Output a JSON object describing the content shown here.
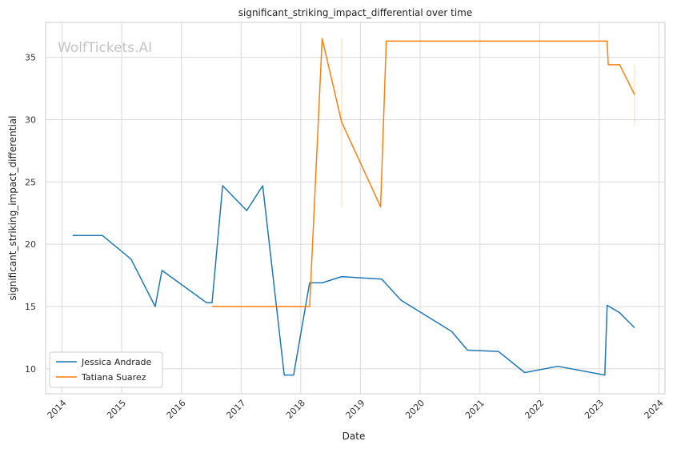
{
  "chart_data": {
    "type": "line",
    "title": "significant_striking_impact_differential over time",
    "xlabel": "Date",
    "ylabel": "significant_striking_impact_differential",
    "watermark": "WolfTickets.AI",
    "x_ticks": [
      "2014",
      "2015",
      "2016",
      "2017",
      "2018",
      "2019",
      "2020",
      "2021",
      "2022",
      "2023",
      "2024"
    ],
    "y_ticks": [
      10,
      15,
      20,
      25,
      30,
      35
    ],
    "xlim": [
      "2013-09-23",
      "2024-02-07"
    ],
    "ylim": [
      8.0,
      37.8
    ],
    "grid": true,
    "legend_position": "lower-left",
    "colors": {
      "Jessica Andrade": "#1f77b4",
      "Tatiana Suarez": "#ff7f0e"
    },
    "series": [
      {
        "name": "Jessica Andrade",
        "points": [
          [
            "2014-03-08",
            20.7
          ],
          [
            "2014-09-06",
            20.7
          ],
          [
            "2015-02-28",
            18.8
          ],
          [
            "2015-07-25",
            15.0
          ],
          [
            "2015-09-05",
            17.9
          ],
          [
            "2016-06-04",
            15.3
          ],
          [
            "2016-07-07",
            15.3
          ],
          [
            "2016-09-10",
            24.7
          ],
          [
            "2017-02-04",
            22.7
          ],
          [
            "2017-05-13",
            24.7
          ],
          [
            "2017-09-22",
            9.5
          ],
          [
            "2017-11-18",
            9.5
          ],
          [
            "2018-02-24",
            16.9
          ],
          [
            "2018-05-12",
            16.9
          ],
          [
            "2018-09-08",
            17.4
          ],
          [
            "2019-05-11",
            17.2
          ],
          [
            "2019-09-07",
            15.5
          ],
          [
            "2020-07-12",
            13.0
          ],
          [
            "2020-10-17",
            11.5
          ],
          [
            "2021-04-24",
            11.4
          ],
          [
            "2021-10-02",
            9.7
          ],
          [
            "2022-04-23",
            10.2
          ],
          [
            "2023-02-04",
            9.5
          ],
          [
            "2023-02-18",
            15.1
          ],
          [
            "2023-05-06",
            14.5
          ],
          [
            "2023-08-05",
            13.3
          ]
        ]
      },
      {
        "name": "Tatiana Suarez",
        "points": [
          [
            "2016-07-07",
            15.0
          ],
          [
            "2018-02-24",
            15.0
          ],
          [
            "2018-05-12",
            36.5
          ],
          [
            "2018-09-08",
            29.8
          ],
          [
            "2019-05-04",
            23.0
          ],
          [
            "2019-06-08",
            36.3
          ],
          [
            "2023-02-18",
            36.3
          ],
          [
            "2023-02-25",
            34.4
          ],
          [
            "2023-05-06",
            34.4
          ],
          [
            "2023-08-05",
            32.0
          ]
        ],
        "error_bars": [
          {
            "x": "2018-09-08",
            "low": 23.0,
            "high": 36.5
          },
          {
            "x": "2023-08-05",
            "low": 29.5,
            "high": 34.4
          }
        ]
      }
    ]
  }
}
